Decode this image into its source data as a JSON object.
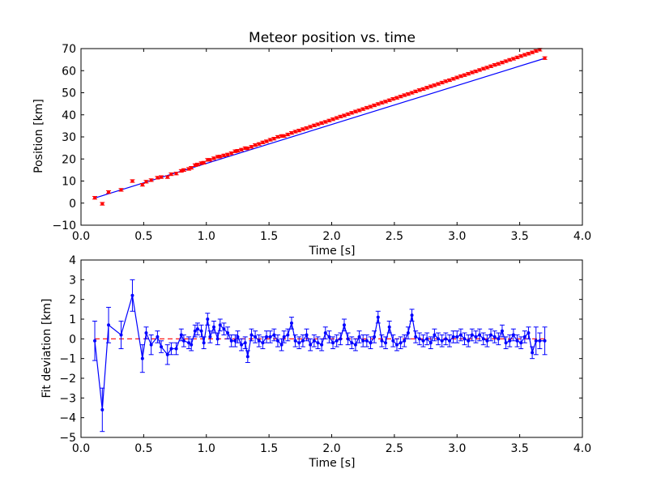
{
  "chart_data": [
    {
      "type": "scatter",
      "title": "Meteor position vs. time",
      "xlabel": "Time [s]",
      "ylabel": "Position [km]",
      "xlim": [
        0.0,
        4.0
      ],
      "ylim": [
        -10,
        70
      ],
      "xticks": [
        0.0,
        0.5,
        1.0,
        1.5,
        2.0,
        2.5,
        3.0,
        3.5,
        4.0
      ],
      "xtick_labels": [
        "0.0",
        "0.5",
        "1.0",
        "1.5",
        "2.0",
        "2.5",
        "3.0",
        "3.5",
        "4.0"
      ],
      "yticks": [
        -10,
        0,
        10,
        20,
        30,
        40,
        50,
        60,
        70
      ],
      "ytick_labels": [
        "−10",
        "0",
        "10",
        "20",
        "30",
        "40",
        "50",
        "60",
        "70"
      ],
      "grid": false,
      "series": [
        {
          "kind": "errorbar-points",
          "color": "#ff0000",
          "x": [
            0.11,
            0.17,
            0.22,
            0.32,
            0.41,
            0.49,
            0.52,
            0.56,
            0.61,
            0.64,
            0.69,
            0.72,
            0.76,
            0.8,
            0.82,
            0.86,
            0.88,
            0.91,
            0.93,
            0.96,
            0.98,
            1.01,
            1.03,
            1.06,
            1.09,
            1.11,
            1.14,
            1.17,
            1.2,
            1.23,
            1.25,
            1.28,
            1.31,
            1.33,
            1.36,
            1.39,
            1.42,
            1.45,
            1.48,
            1.51,
            1.54,
            1.57,
            1.6,
            1.62,
            1.65,
            1.68,
            1.71,
            1.74,
            1.77,
            1.8,
            1.83,
            1.86,
            1.89,
            1.92,
            1.95,
            1.98,
            2.01,
            2.04,
            2.07,
            2.1,
            2.13,
            2.16,
            2.19,
            2.22,
            2.25,
            2.28,
            2.31,
            2.34,
            2.37,
            2.4,
            2.43,
            2.46,
            2.49,
            2.52,
            2.55,
            2.58,
            2.61,
            2.64,
            2.67,
            2.7,
            2.73,
            2.76,
            2.79,
            2.82,
            2.85,
            2.88,
            2.91,
            2.94,
            2.97,
            3.0,
            3.03,
            3.06,
            3.09,
            3.12,
            3.15,
            3.18,
            3.21,
            3.24,
            3.27,
            3.3,
            3.33,
            3.36,
            3.39,
            3.42,
            3.45,
            3.48,
            3.51,
            3.54,
            3.57,
            3.6,
            3.63,
            3.66,
            3.7
          ],
          "y": [
            2.4,
            -0.3,
            5.0,
            6.0,
            10.0,
            8.3,
            9.7,
            10.4,
            11.5,
            11.8,
            11.8,
            13.1,
            13.4,
            14.6,
            15.0,
            15.5,
            16.0,
            17.2,
            17.5,
            18.1,
            18.3,
            19.6,
            19.6,
            20.3,
            21.0,
            21.1,
            21.6,
            22.0,
            22.6,
            23.5,
            23.7,
            24.2,
            24.9,
            24.8,
            25.5,
            26.3,
            26.8,
            27.5,
            28.0,
            28.7,
            29.2,
            30.0,
            30.4,
            30.4,
            31.1,
            31.8,
            32.4,
            32.9,
            33.5,
            34.0,
            34.6,
            35.2,
            35.7,
            36.3,
            36.8,
            37.4,
            38.0,
            38.6,
            39.2,
            39.7,
            40.3,
            40.9,
            41.5,
            42.0,
            42.6,
            43.2,
            43.7,
            44.3,
            44.9,
            45.5,
            46.0,
            46.6,
            47.2,
            47.7,
            48.3,
            48.9,
            49.4,
            50.0,
            50.6,
            51.2,
            51.7,
            52.3,
            52.9,
            53.4,
            54.0,
            54.6,
            55.2,
            55.7,
            56.3,
            56.9,
            57.5,
            58.0,
            58.6,
            59.2,
            59.7,
            60.3,
            60.9,
            61.4,
            62.0,
            62.6,
            63.1,
            63.7,
            64.3,
            64.9,
            65.4,
            66.0,
            66.6,
            67.2,
            67.7,
            68.3,
            68.9,
            69.5,
            65.7
          ],
          "yerr": 0.6
        },
        {
          "kind": "fit-line",
          "color": "#0000ff",
          "x": [
            0.11,
            3.7
          ],
          "y": [
            2.3,
            65.6
          ]
        }
      ]
    },
    {
      "type": "line",
      "title": "",
      "xlabel": "Time [s]",
      "ylabel": "Fit deviation [km]",
      "xlim": [
        0.0,
        4.0
      ],
      "ylim": [
        -5,
        4
      ],
      "xticks": [
        0.0,
        0.5,
        1.0,
        1.5,
        2.0,
        2.5,
        3.0,
        3.5,
        4.0
      ],
      "xtick_labels": [
        "0.0",
        "0.5",
        "1.0",
        "1.5",
        "2.0",
        "2.5",
        "3.0",
        "3.5",
        "4.0"
      ],
      "yticks": [
        -5,
        -4,
        -3,
        -2,
        -1,
        0,
        1,
        2,
        3,
        4
      ],
      "ytick_labels": [
        "−5",
        "−4",
        "−3",
        "−2",
        "−1",
        "0",
        "1",
        "2",
        "3",
        "4"
      ],
      "grid": false,
      "series": [
        {
          "kind": "zero-reference",
          "color": "#ff0000",
          "x": [
            0.11,
            3.7
          ],
          "y": [
            0,
            0
          ]
        },
        {
          "kind": "errorbar-line",
          "color": "#0000ff",
          "x": [
            0.11,
            0.17,
            0.22,
            0.32,
            0.41,
            0.49,
            0.52,
            0.56,
            0.61,
            0.64,
            0.69,
            0.72,
            0.76,
            0.8,
            0.82,
            0.86,
            0.88,
            0.91,
            0.93,
            0.96,
            0.98,
            1.01,
            1.03,
            1.06,
            1.09,
            1.11,
            1.14,
            1.17,
            1.2,
            1.23,
            1.25,
            1.28,
            1.31,
            1.33,
            1.36,
            1.39,
            1.42,
            1.45,
            1.48,
            1.51,
            1.54,
            1.57,
            1.6,
            1.62,
            1.65,
            1.68,
            1.71,
            1.74,
            1.77,
            1.8,
            1.83,
            1.86,
            1.89,
            1.92,
            1.95,
            1.98,
            2.01,
            2.04,
            2.07,
            2.1,
            2.13,
            2.16,
            2.19,
            2.22,
            2.25,
            2.28,
            2.31,
            2.34,
            2.37,
            2.4,
            2.43,
            2.46,
            2.49,
            2.52,
            2.55,
            2.58,
            2.61,
            2.64,
            2.67,
            2.7,
            2.73,
            2.76,
            2.79,
            2.82,
            2.85,
            2.88,
            2.91,
            2.94,
            2.97,
            3.0,
            3.03,
            3.06,
            3.09,
            3.12,
            3.15,
            3.18,
            3.21,
            3.24,
            3.27,
            3.3,
            3.33,
            3.36,
            3.39,
            3.42,
            3.45,
            3.48,
            3.51,
            3.54,
            3.57,
            3.6,
            3.63,
            3.66,
            3.7
          ],
          "y": [
            -0.1,
            -3.6,
            0.7,
            0.2,
            2.2,
            -1.0,
            0.3,
            -0.3,
            0.1,
            -0.4,
            -0.8,
            -0.5,
            -0.5,
            0.2,
            -0.1,
            -0.2,
            -0.3,
            0.4,
            0.5,
            0.4,
            -0.2,
            1.0,
            0.1,
            0.6,
            0.0,
            0.7,
            0.5,
            0.3,
            -0.1,
            -0.1,
            0.1,
            -0.3,
            -0.2,
            -0.9,
            0.2,
            0.1,
            -0.1,
            -0.2,
            0.1,
            0.1,
            0.2,
            -0.1,
            -0.3,
            0.1,
            0.2,
            0.8,
            -0.1,
            -0.2,
            -0.1,
            0.2,
            -0.3,
            -0.1,
            -0.2,
            -0.3,
            0.3,
            0.1,
            -0.2,
            -0.1,
            0.0,
            0.7,
            0.0,
            -0.2,
            -0.3,
            0.1,
            -0.1,
            -0.1,
            -0.2,
            0.1,
            1.1,
            -0.1,
            -0.2,
            0.6,
            -0.1,
            -0.3,
            -0.2,
            -0.1,
            0.3,
            1.2,
            0.1,
            0.0,
            -0.1,
            0.0,
            -0.2,
            0.2,
            0.0,
            -0.1,
            0.0,
            -0.1,
            0.1,
            0.1,
            0.2,
            0.0,
            -0.1,
            0.2,
            0.1,
            0.2,
            0.0,
            -0.1,
            0.2,
            0.1,
            0.0,
            0.4,
            -0.2,
            -0.1,
            0.2,
            -0.1,
            -0.2,
            0.1,
            0.3,
            -0.7,
            -0.1,
            -0.1,
            -0.1
          ],
          "yerr": [
            1.0,
            1.1,
            0.9,
            0.7,
            0.8,
            0.7,
            0.3,
            0.5,
            0.3,
            0.3,
            0.5,
            0.3,
            0.3,
            0.3,
            0.3,
            0.3,
            0.3,
            0.3,
            0.3,
            0.3,
            0.3,
            0.3,
            0.3,
            0.3,
            0.3,
            0.3,
            0.3,
            0.3,
            0.3,
            0.3,
            0.3,
            0.3,
            0.3,
            0.3,
            0.3,
            0.3,
            0.3,
            0.3,
            0.3,
            0.3,
            0.3,
            0.3,
            0.3,
            0.3,
            0.3,
            0.3,
            0.3,
            0.3,
            0.3,
            0.3,
            0.3,
            0.3,
            0.3,
            0.3,
            0.3,
            0.3,
            0.3,
            0.3,
            0.3,
            0.3,
            0.3,
            0.3,
            0.3,
            0.3,
            0.3,
            0.3,
            0.3,
            0.3,
            0.3,
            0.3,
            0.3,
            0.3,
            0.3,
            0.3,
            0.3,
            0.3,
            0.3,
            0.3,
            0.3,
            0.3,
            0.3,
            0.3,
            0.3,
            0.3,
            0.3,
            0.3,
            0.3,
            0.3,
            0.3,
            0.3,
            0.3,
            0.3,
            0.3,
            0.3,
            0.3,
            0.3,
            0.3,
            0.3,
            0.3,
            0.3,
            0.3,
            0.3,
            0.3,
            0.3,
            0.3,
            0.3,
            0.3,
            0.3,
            0.3,
            0.3,
            0.7,
            0.4,
            0.7
          ]
        }
      ]
    }
  ]
}
